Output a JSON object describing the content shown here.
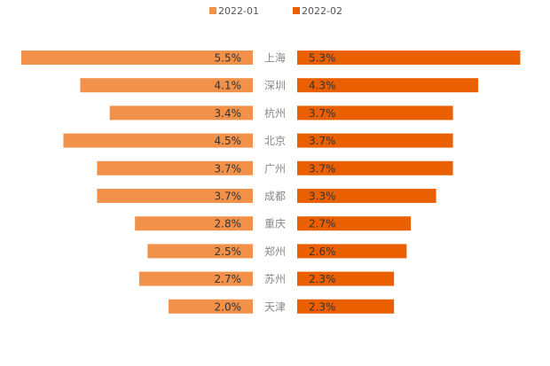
{
  "chart_data": {
    "type": "bar",
    "title": "",
    "xlabel": "",
    "ylabel": "",
    "categories": [
      "上海",
      "深圳",
      "杭州",
      "北京",
      "广州",
      "成都",
      "重庆",
      "郑州",
      "苏州",
      "天津"
    ],
    "series": [
      {
        "name": "2022-01",
        "color": "#f2914a",
        "values": [
          5.5,
          4.1,
          3.4,
          4.5,
          3.7,
          3.7,
          2.8,
          2.5,
          2.7,
          2.0
        ],
        "labels": [
          "5.5%",
          "4.1%",
          "3.4%",
          "4.5%",
          "3.7%",
          "3.7%",
          "2.8%",
          "2.5%",
          "2.7%",
          "2.0%"
        ]
      },
      {
        "name": "2022-02",
        "color": "#ea5f00",
        "values": [
          5.3,
          4.3,
          3.7,
          3.7,
          3.7,
          3.3,
          2.7,
          2.6,
          2.3,
          2.3
        ],
        "labels": [
          "5.3%",
          "4.3%",
          "3.7%",
          "3.7%",
          "3.7%",
          "3.3%",
          "2.7%",
          "2.6%",
          "2.3%",
          "2.3%"
        ]
      }
    ],
    "xlim": [
      0,
      5.5
    ],
    "legend_position": "top-center",
    "grid": false,
    "label_color": "#333333"
  }
}
